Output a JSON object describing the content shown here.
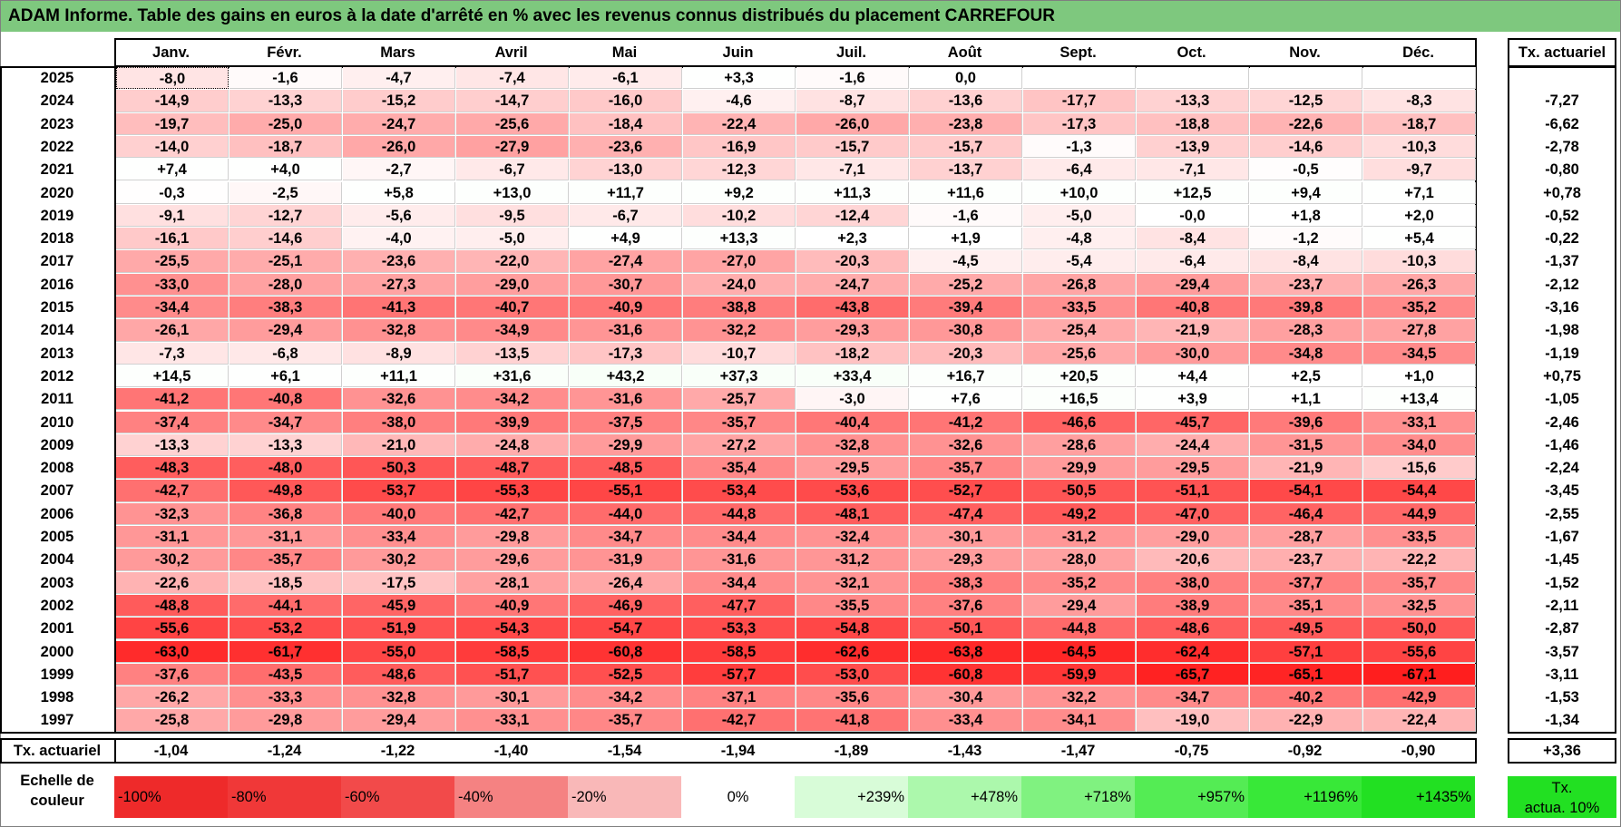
{
  "title": "ADAM Informe. Table des gains en euros à la date d'arrêté en % avec les revenus connus distribués du placement CARREFOUR",
  "chart_data": {
    "type": "heatmap",
    "title": "ADAM Informe. Table des gains en euros à la date d'arrêté en % avec les revenus connus distribués du placement CARREFOUR",
    "months": [
      "Janv.",
      "Févr.",
      "Mars",
      "Avril",
      "Mai",
      "Juin",
      "Juil.",
      "Août",
      "Sept.",
      "Oct.",
      "Nov.",
      "Déc."
    ],
    "rate_header": "Tx. actuariel",
    "rows": [
      {
        "year": "2025",
        "values": [
          "-8,0",
          "-1,6",
          "-4,7",
          "-7,4",
          "-6,1",
          "+3,3",
          "-1,6",
          "0,0",
          "",
          "",
          "",
          ""
        ],
        "rate": ""
      },
      {
        "year": "2024",
        "values": [
          "-14,9",
          "-13,3",
          "-15,2",
          "-14,7",
          "-16,0",
          "-4,6",
          "-8,7",
          "-13,6",
          "-17,7",
          "-13,3",
          "-12,5",
          "-8,3"
        ],
        "rate": "-7,27"
      },
      {
        "year": "2023",
        "values": [
          "-19,7",
          "-25,0",
          "-24,7",
          "-25,6",
          "-18,4",
          "-22,4",
          "-26,0",
          "-23,8",
          "-17,3",
          "-18,8",
          "-22,6",
          "-18,7"
        ],
        "rate": "-6,62"
      },
      {
        "year": "2022",
        "values": [
          "-14,0",
          "-18,7",
          "-26,0",
          "-27,9",
          "-23,6",
          "-16,9",
          "-15,7",
          "-15,7",
          "-1,3",
          "-13,9",
          "-14,6",
          "-10,3"
        ],
        "rate": "-2,78"
      },
      {
        "year": "2021",
        "values": [
          "+7,4",
          "+4,0",
          "-2,7",
          "-6,7",
          "-13,0",
          "-12,3",
          "-7,1",
          "-13,7",
          "-6,4",
          "-7,1",
          "-0,5",
          "-9,7"
        ],
        "rate": "-0,80"
      },
      {
        "year": "2020",
        "values": [
          "-0,3",
          "-2,5",
          "+5,8",
          "+13,0",
          "+11,7",
          "+9,2",
          "+11,3",
          "+11,6",
          "+10,0",
          "+12,5",
          "+9,4",
          "+7,1"
        ],
        "rate": "+0,78"
      },
      {
        "year": "2019",
        "values": [
          "-9,1",
          "-12,7",
          "-5,6",
          "-9,5",
          "-6,7",
          "-10,2",
          "-12,4",
          "-1,6",
          "-5,0",
          "-0,0",
          "+1,8",
          "+2,0"
        ],
        "rate": "-0,52"
      },
      {
        "year": "2018",
        "values": [
          "-16,1",
          "-14,6",
          "-4,0",
          "-5,0",
          "+4,9",
          "+13,3",
          "+2,3",
          "+1,9",
          "-4,8",
          "-8,4",
          "-1,2",
          "+5,4"
        ],
        "rate": "-0,22"
      },
      {
        "year": "2017",
        "values": [
          "-25,5",
          "-25,1",
          "-23,6",
          "-22,0",
          "-27,4",
          "-27,0",
          "-20,3",
          "-4,5",
          "-5,4",
          "-6,4",
          "-8,4",
          "-10,3"
        ],
        "rate": "-1,37"
      },
      {
        "year": "2016",
        "values": [
          "-33,0",
          "-28,0",
          "-27,3",
          "-29,0",
          "-30,7",
          "-24,0",
          "-24,7",
          "-25,2",
          "-26,8",
          "-29,4",
          "-23,7",
          "-26,3"
        ],
        "rate": "-2,12"
      },
      {
        "year": "2015",
        "values": [
          "-34,4",
          "-38,3",
          "-41,3",
          "-40,7",
          "-40,9",
          "-38,8",
          "-43,8",
          "-39,4",
          "-33,5",
          "-40,8",
          "-39,8",
          "-35,2"
        ],
        "rate": "-3,16"
      },
      {
        "year": "2014",
        "values": [
          "-26,1",
          "-29,4",
          "-32,8",
          "-34,9",
          "-31,6",
          "-32,2",
          "-29,3",
          "-30,8",
          "-25,4",
          "-21,9",
          "-28,3",
          "-27,8"
        ],
        "rate": "-1,98"
      },
      {
        "year": "2013",
        "values": [
          "-7,3",
          "-6,8",
          "-8,9",
          "-13,5",
          "-17,3",
          "-10,7",
          "-18,2",
          "-20,3",
          "-25,6",
          "-30,0",
          "-34,8",
          "-34,5"
        ],
        "rate": "-1,19"
      },
      {
        "year": "2012",
        "values": [
          "+14,5",
          "+6,1",
          "+11,1",
          "+31,6",
          "+43,2",
          "+37,3",
          "+33,4",
          "+16,7",
          "+20,5",
          "+4,4",
          "+2,5",
          "+1,0"
        ],
        "rate": "+0,75"
      },
      {
        "year": "2011",
        "values": [
          "-41,2",
          "-40,8",
          "-32,6",
          "-34,2",
          "-31,6",
          "-25,7",
          "-3,0",
          "+7,6",
          "+16,5",
          "+3,9",
          "+1,1",
          "+13,4"
        ],
        "rate": "-1,05"
      },
      {
        "year": "2010",
        "values": [
          "-37,4",
          "-34,7",
          "-38,0",
          "-39,9",
          "-37,5",
          "-35,7",
          "-40,4",
          "-41,2",
          "-46,6",
          "-45,7",
          "-39,6",
          "-33,1"
        ],
        "rate": "-2,46"
      },
      {
        "year": "2009",
        "values": [
          "-13,3",
          "-13,3",
          "-21,0",
          "-24,8",
          "-29,9",
          "-27,2",
          "-32,8",
          "-32,6",
          "-28,6",
          "-24,4",
          "-31,5",
          "-34,0"
        ],
        "rate": "-1,46"
      },
      {
        "year": "2008",
        "values": [
          "-48,3",
          "-48,0",
          "-50,3",
          "-48,7",
          "-48,5",
          "-35,4",
          "-29,5",
          "-35,7",
          "-29,9",
          "-29,5",
          "-21,9",
          "-15,6"
        ],
        "rate": "-2,24"
      },
      {
        "year": "2007",
        "values": [
          "-42,7",
          "-49,8",
          "-53,7",
          "-55,3",
          "-55,1",
          "-53,4",
          "-53,6",
          "-52,7",
          "-50,5",
          "-51,1",
          "-54,1",
          "-54,4"
        ],
        "rate": "-3,45"
      },
      {
        "year": "2006",
        "values": [
          "-32,3",
          "-36,8",
          "-40,0",
          "-42,7",
          "-44,0",
          "-44,8",
          "-48,1",
          "-47,4",
          "-49,2",
          "-47,0",
          "-46,4",
          "-44,9"
        ],
        "rate": "-2,55"
      },
      {
        "year": "2005",
        "values": [
          "-31,1",
          "-31,1",
          "-33,4",
          "-29,8",
          "-34,7",
          "-34,4",
          "-32,4",
          "-30,1",
          "-31,2",
          "-29,0",
          "-28,7",
          "-33,5"
        ],
        "rate": "-1,67"
      },
      {
        "year": "2004",
        "values": [
          "-30,2",
          "-35,7",
          "-30,2",
          "-29,6",
          "-31,9",
          "-31,6",
          "-31,2",
          "-29,3",
          "-28,0",
          "-20,6",
          "-23,7",
          "-22,2"
        ],
        "rate": "-1,45"
      },
      {
        "year": "2003",
        "values": [
          "-22,6",
          "-18,5",
          "-17,5",
          "-28,1",
          "-26,4",
          "-34,4",
          "-32,1",
          "-38,3",
          "-35,2",
          "-38,0",
          "-37,7",
          "-35,7"
        ],
        "rate": "-1,52"
      },
      {
        "year": "2002",
        "values": [
          "-48,8",
          "-44,1",
          "-45,9",
          "-40,9",
          "-46,9",
          "-47,7",
          "-35,5",
          "-37,6",
          "-29,4",
          "-38,9",
          "-35,1",
          "-32,5"
        ],
        "rate": "-2,11"
      },
      {
        "year": "2001",
        "values": [
          "-55,6",
          "-53,2",
          "-51,9",
          "-54,3",
          "-54,7",
          "-53,3",
          "-54,8",
          "-50,1",
          "-44,8",
          "-48,6",
          "-49,5",
          "-50,0"
        ],
        "rate": "-2,87"
      },
      {
        "year": "2000",
        "values": [
          "-63,0",
          "-61,7",
          "-55,0",
          "-58,5",
          "-60,8",
          "-58,5",
          "-62,6",
          "-63,8",
          "-64,5",
          "-62,4",
          "-57,1",
          "-55,6"
        ],
        "rate": "-3,57"
      },
      {
        "year": "1999",
        "values": [
          "-37,6",
          "-43,5",
          "-48,6",
          "-51,7",
          "-52,5",
          "-57,7",
          "-53,0",
          "-60,8",
          "-59,9",
          "-65,7",
          "-65,1",
          "-67,1"
        ],
        "rate": "-3,11"
      },
      {
        "year": "1998",
        "values": [
          "-26,2",
          "-33,3",
          "-32,8",
          "-30,1",
          "-34,2",
          "-37,1",
          "-35,6",
          "-30,4",
          "-32,2",
          "-34,7",
          "-40,2",
          "-42,9"
        ],
        "rate": "-1,53"
      },
      {
        "year": "1997",
        "values": [
          "-25,8",
          "-29,8",
          "-29,4",
          "-33,1",
          "-35,7",
          "-42,7",
          "-41,8",
          "-33,4",
          "-34,1",
          "-19,0",
          "-22,9",
          "-22,4"
        ],
        "rate": "-1,34"
      }
    ],
    "footer": {
      "label": "Tx. actuariel",
      "values": [
        "-1,04",
        "-1,24",
        "-1,22",
        "-1,40",
        "-1,54",
        "-1,94",
        "-1,89",
        "-1,43",
        "-1,47",
        "-0,75",
        "-0,92",
        "-0,90"
      ],
      "rate": "+3,36"
    },
    "legend": {
      "label_line1": "Echelle de",
      "label_line2": "couleur",
      "steps": [
        "-100%",
        "-80%",
        "-60%",
        "-40%",
        "-20%",
        "0%",
        "+239%",
        "+478%",
        "+718%",
        "+957%",
        "+1196%",
        "+1435%"
      ],
      "step_colors": [
        "#ee2a2a",
        "#f03838",
        "#f24a4a",
        "#f58282",
        "#f9b8b8",
        "#ffffff",
        "#d8fcd8",
        "#acf8ac",
        "#80f280",
        "#54ec54",
        "#38e838",
        "#22e022"
      ],
      "rate_line1": "Tx.",
      "rate_line2": "actua. 10%",
      "rate_color": "#22e022"
    }
  }
}
